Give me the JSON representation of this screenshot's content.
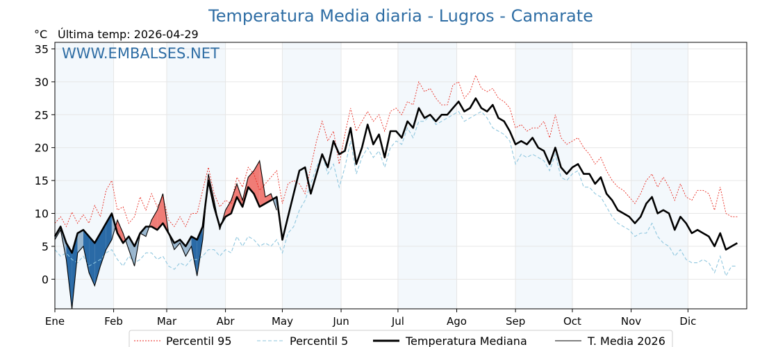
{
  "colors": {
    "title": "#2e6da4",
    "watermark": "#2e6da4",
    "p95": "#e8261c",
    "p5": "#8ec6de",
    "median": "#000000",
    "current": "#000000",
    "above": "#f07c76",
    "below": "#2a6aa6",
    "below_light": "#9ab7cf",
    "shade": "#f3f8fc",
    "grid": "#e6e6e6"
  },
  "chart_data": {
    "type": "line",
    "title": "Temperatura Media diaria - Lugros - Camarate",
    "unit": "°C",
    "last_temp_label": "Última temp: 2026-04-29",
    "watermark": "WWW.EMBALSES.NET",
    "ylim": [
      -4.5,
      36
    ],
    "yticks": [
      0,
      5,
      10,
      15,
      20,
      25,
      30,
      35
    ],
    "xlim": [
      1,
      366
    ],
    "months": [
      "Ene",
      "Feb",
      "Mar",
      "Abr",
      "May",
      "Jun",
      "Jul",
      "Ago",
      "Sep",
      "Oct",
      "Nov",
      "Dic"
    ],
    "month_start_days": [
      1,
      32,
      60,
      91,
      121,
      152,
      182,
      213,
      244,
      274,
      305,
      335
    ],
    "shaded_months": [
      0,
      2,
      4,
      6,
      8,
      10
    ],
    "grid": true,
    "legend_position": "bottom",
    "legend": [
      "Percentil 95",
      "Percentil 5",
      "Temperatura Mediana",
      "T. Media 2026"
    ],
    "x_day_of_year": [
      1,
      4,
      7,
      10,
      13,
      16,
      19,
      22,
      25,
      28,
      31,
      34,
      37,
      40,
      43,
      46,
      49,
      52,
      55,
      58,
      61,
      64,
      67,
      70,
      73,
      76,
      79,
      82,
      85,
      88,
      91,
      94,
      97,
      100,
      103,
      106,
      109,
      112,
      115,
      118,
      121,
      124,
      127,
      130,
      133,
      136,
      139,
      142,
      145,
      148,
      151,
      154,
      157,
      160,
      163,
      166,
      169,
      172,
      175,
      178,
      181,
      184,
      187,
      190,
      193,
      196,
      199,
      202,
      205,
      208,
      211,
      214,
      217,
      220,
      223,
      226,
      229,
      232,
      235,
      238,
      241,
      244,
      247,
      250,
      253,
      256,
      259,
      262,
      265,
      268,
      271,
      274,
      277,
      280,
      283,
      286,
      289,
      292,
      295,
      298,
      301,
      304,
      307,
      310,
      313,
      316,
      319,
      322,
      325,
      328,
      331,
      334,
      337,
      340,
      343,
      346,
      349,
      352,
      355,
      358,
      361,
      364,
      366
    ],
    "series": [
      {
        "name": "Percentil 95",
        "style": "dotted-red",
        "values": [
          8.5,
          9.5,
          8.0,
          10.2,
          8.5,
          9.8,
          8.5,
          11.2,
          9.5,
          13.5,
          15.0,
          10.5,
          11.0,
          8.5,
          9.5,
          12.5,
          10.5,
          13.0,
          11.0,
          12.5,
          9.0,
          8.0,
          9.5,
          8.0,
          10.0,
          10.0,
          13.5,
          17.0,
          13.0,
          11.0,
          12.0,
          11.5,
          15.5,
          14.0,
          17.0,
          16.0,
          13.5,
          14.5,
          15.5,
          16.5,
          11.5,
          14.5,
          15.0,
          14.5,
          13.0,
          17.0,
          21.0,
          24.0,
          21.0,
          22.5,
          17.5,
          22.0,
          26.0,
          22.5,
          24.0,
          25.5,
          24.0,
          25.0,
          22.5,
          25.5,
          26.0,
          25.0,
          27.0,
          26.5,
          30.0,
          28.5,
          29.0,
          27.5,
          26.5,
          26.5,
          29.5,
          30.0,
          27.5,
          28.5,
          31.0,
          29.0,
          28.5,
          29.0,
          27.5,
          27.0,
          26.0,
          23.0,
          23.5,
          22.5,
          23.0,
          23.0,
          24.0,
          21.5,
          25.0,
          21.5,
          20.5,
          21.0,
          21.5,
          20.0,
          19.0,
          17.5,
          18.5,
          16.5,
          15.0,
          14.0,
          13.5,
          12.5,
          11.5,
          13.0,
          15.0,
          16.0,
          14.0,
          15.5,
          14.0,
          12.0,
          14.5,
          12.5,
          12.0,
          13.5,
          13.5,
          13.0,
          10.5,
          14.0,
          10.0,
          9.5,
          9.5
        ]
      },
      {
        "name": "Percentil 5",
        "style": "dashed-lightblue",
        "values": [
          4.5,
          3.5,
          4.0,
          3.0,
          2.5,
          3.5,
          2.0,
          2.5,
          3.0,
          4.0,
          4.5,
          3.0,
          2.0,
          3.5,
          2.5,
          3.0,
          4.0,
          4.0,
          3.0,
          3.5,
          2.0,
          1.5,
          2.5,
          2.0,
          3.0,
          3.0,
          3.5,
          4.5,
          4.5,
          3.5,
          4.5,
          4.0,
          6.5,
          5.0,
          6.5,
          6.0,
          5.0,
          5.5,
          5.0,
          6.0,
          4.0,
          7.0,
          8.0,
          10.5,
          12.0,
          14.5,
          17.0,
          19.0,
          16.0,
          17.5,
          14.0,
          17.0,
          21.0,
          16.0,
          18.5,
          20.0,
          18.5,
          19.5,
          17.0,
          20.0,
          21.0,
          20.5,
          23.0,
          21.5,
          24.0,
          24.0,
          25.0,
          23.5,
          24.0,
          24.5,
          25.0,
          25.5,
          24.0,
          24.5,
          25.0,
          25.5,
          24.5,
          23.0,
          22.5,
          22.0,
          21.0,
          17.5,
          19.0,
          18.5,
          19.0,
          18.5,
          18.0,
          16.5,
          19.0,
          15.5,
          15.0,
          16.0,
          16.5,
          14.0,
          14.0,
          13.0,
          12.5,
          11.0,
          9.5,
          8.5,
          8.0,
          7.5,
          6.5,
          7.0,
          7.0,
          8.5,
          6.5,
          5.5,
          5.0,
          3.5,
          4.5,
          3.0,
          2.5,
          2.5,
          3.0,
          2.5,
          1.0,
          3.5,
          0.5,
          2.0,
          2.0
        ]
      },
      {
        "name": "Temperatura Mediana",
        "style": "solid-black-thick",
        "values": [
          6.5,
          8.0,
          5.5,
          4.0,
          7.0,
          7.5,
          6.5,
          5.5,
          7.0,
          8.5,
          10.0,
          7.0,
          5.5,
          6.5,
          5.0,
          7.0,
          8.0,
          8.0,
          7.5,
          8.5,
          7.0,
          5.5,
          6.0,
          5.0,
          6.5,
          6.0,
          8.0,
          15.0,
          11.0,
          8.0,
          9.5,
          10.0,
          12.5,
          11.0,
          14.0,
          13.0,
          11.0,
          11.5,
          12.0,
          12.5,
          6.0,
          9.5,
          13.0,
          16.5,
          17.0,
          13.0,
          16.0,
          19.0,
          17.0,
          21.0,
          19.0,
          19.5,
          23.0,
          17.5,
          20.0,
          23.5,
          20.5,
          22.0,
          18.5,
          22.5,
          22.5,
          21.5,
          24.0,
          23.0,
          26.0,
          24.5,
          25.0,
          24.0,
          25.0,
          25.0,
          26.0,
          27.0,
          25.5,
          26.0,
          27.5,
          26.0,
          25.5,
          26.5,
          24.5,
          24.0,
          22.5,
          20.5,
          21.0,
          20.5,
          21.5,
          20.0,
          19.5,
          17.5,
          20.0,
          17.0,
          16.0,
          17.0,
          17.5,
          16.0,
          16.0,
          14.5,
          15.5,
          13.0,
          12.0,
          10.5,
          10.0,
          9.5,
          8.5,
          9.5,
          11.5,
          12.5,
          10.0,
          10.5,
          10.0,
          7.5,
          9.5,
          8.5,
          7.0,
          7.5,
          7.0,
          6.5,
          5.0,
          7.0,
          4.5,
          5.0,
          5.5
        ]
      },
      {
        "name": "T. Media 2026",
        "style": "solid-black-thin",
        "values": [
          6.0,
          7.5,
          3.0,
          -5.0,
          4.0,
          5.0,
          1.0,
          -1.0,
          2.0,
          4.5,
          6.0,
          9.0,
          7.0,
          4.5,
          2.0,
          7.0,
          6.5,
          9.0,
          10.5,
          13.0,
          7.0,
          4.5,
          5.5,
          3.5,
          5.0,
          0.5,
          6.0,
          16.0,
          12.0,
          7.5,
          10.5,
          12.0,
          14.5,
          12.0,
          15.5,
          16.5,
          18.0,
          12.5,
          13.0,
          10.5
        ]
      }
    ],
    "current_year_days": 118
  },
  "legend_samples": {
    "p95": "dotted",
    "p5": "dashed",
    "median": "thick",
    "current": "thin"
  }
}
